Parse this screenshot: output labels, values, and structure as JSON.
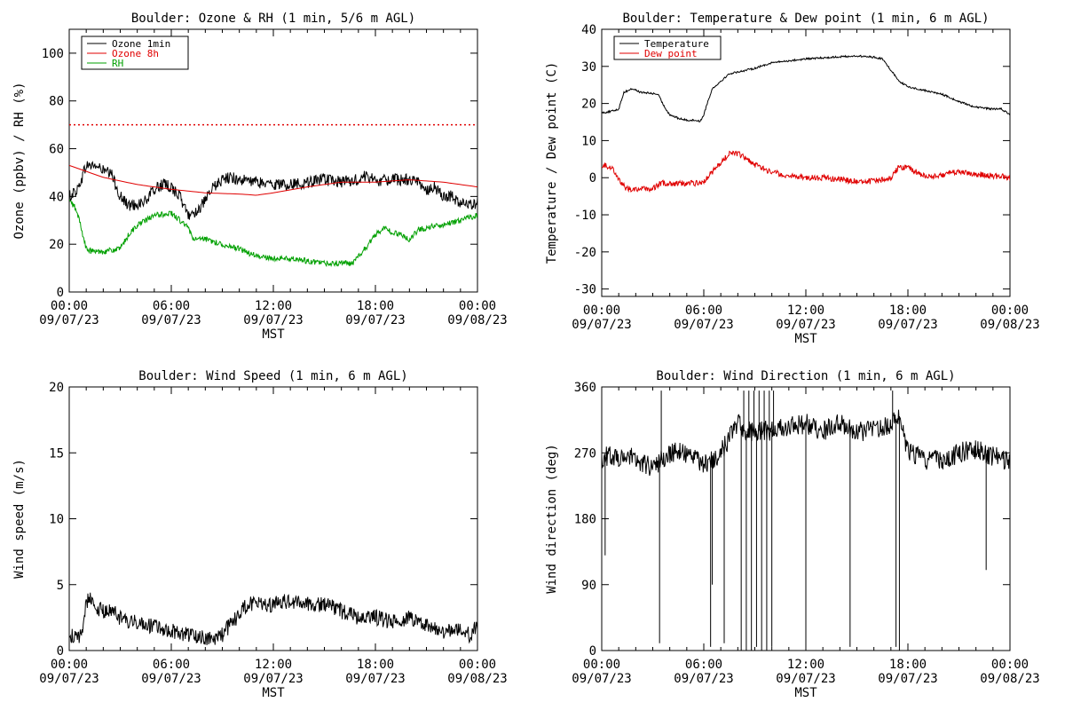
{
  "chart_data": [
    {
      "type": "line",
      "title": "Boulder: Ozone & RH (1 min, 5/6 m AGL)",
      "xlabel": "MST",
      "ylabel": "Ozone (ppbv) / RH (%)",
      "ylim": [
        0,
        110
      ],
      "yticks": [
        0,
        20,
        40,
        60,
        80,
        100
      ],
      "xticks": [
        0,
        6,
        12,
        18,
        24
      ],
      "xtick_labels": [
        [
          "00:00",
          "09/07/23"
        ],
        [
          "06:00",
          "09/07/23"
        ],
        [
          "12:00",
          "09/07/23"
        ],
        [
          "18:00",
          "09/07/23"
        ],
        [
          "00:00",
          "09/08/23"
        ]
      ],
      "legend_position": "top-left",
      "reference_line": {
        "y": 70,
        "color": "#e00000",
        "style": "dotted"
      },
      "series": [
        {
          "name": "Ozone 1min",
          "color": "#000000",
          "noise": 2.5,
          "x": [
            0,
            0.5,
            1,
            1.5,
            2,
            2.5,
            3,
            3.5,
            4,
            4.5,
            5,
            5.5,
            6,
            6.5,
            7,
            7.5,
            8,
            8.5,
            9,
            9.5,
            10,
            11,
            12,
            13,
            14,
            15,
            16,
            17,
            17.5,
            18,
            18.5,
            19,
            20,
            20.5,
            21,
            21.5,
            22,
            22.5,
            23,
            24
          ],
          "y": [
            40,
            43,
            53,
            53,
            51,
            49,
            40,
            36,
            37,
            38,
            43,
            45,
            44,
            40,
            32,
            34,
            38,
            44,
            47,
            48,
            47,
            46,
            45,
            45,
            46,
            47,
            46,
            47,
            49,
            46,
            47,
            47,
            47,
            46,
            43,
            44,
            40,
            40,
            37,
            37
          ]
        },
        {
          "name": "Ozone 8h",
          "color": "#e00000",
          "noise": 0,
          "x": [
            0,
            2,
            4,
            6,
            8,
            10,
            11,
            12,
            14,
            16,
            18,
            20,
            22,
            24
          ],
          "y": [
            53,
            48,
            45,
            43,
            41.5,
            41,
            40.5,
            41.5,
            44,
            46,
            46,
            47,
            46,
            44
          ]
        },
        {
          "name": "RH",
          "color": "#00a000",
          "noise": 1.2,
          "x": [
            0,
            0.3,
            0.6,
            1,
            1.3,
            2,
            3,
            3.5,
            4,
            5,
            6,
            6.5,
            7,
            7.2,
            7.5,
            8,
            9,
            10,
            11,
            12,
            13,
            14,
            15,
            16,
            16.7,
            17,
            17.5,
            18,
            18.5,
            19,
            19.5,
            20,
            20.5,
            21,
            22,
            23,
            24
          ],
          "y": [
            38,
            36,
            30,
            18,
            17,
            17,
            18,
            24,
            28,
            32,
            33,
            30,
            27,
            23,
            22,
            22,
            20,
            18,
            15,
            14,
            14,
            13,
            12,
            12,
            12,
            15,
            19,
            24,
            27,
            25,
            24,
            22,
            26,
            27,
            28,
            30,
            32
          ]
        }
      ]
    },
    {
      "type": "line",
      "title": "Boulder: Temperature & Dew point (1 min, 6 m AGL)",
      "xlabel": "MST",
      "ylabel": "Temperature / Dew point (C)",
      "ylim": [
        -32,
        40
      ],
      "yticks": [
        -30,
        -20,
        -10,
        0,
        10,
        20,
        30,
        40
      ],
      "xticks": [
        0,
        6,
        12,
        18,
        24
      ],
      "xtick_labels": [
        [
          "00:00",
          "09/07/23"
        ],
        [
          "06:00",
          "09/07/23"
        ],
        [
          "12:00",
          "09/07/23"
        ],
        [
          "18:00",
          "09/07/23"
        ],
        [
          "00:00",
          "09/08/23"
        ]
      ],
      "legend_position": "top-left",
      "series": [
        {
          "name": "Temperature",
          "color": "#000000",
          "noise": 0.25,
          "x": [
            0,
            0.5,
            1,
            1.3,
            1.8,
            2.3,
            2.8,
            3.3,
            3.7,
            4,
            4.5,
            5,
            5.5,
            5.8,
            6,
            6.2,
            6.5,
            7,
            7.5,
            8,
            9,
            10,
            11,
            12,
            13,
            14,
            15,
            16,
            16.5,
            17,
            17.5,
            18,
            19,
            20,
            21,
            22,
            23,
            23.5,
            24
          ],
          "y": [
            17.5,
            17.8,
            18.5,
            23,
            24,
            23,
            22.8,
            22.5,
            19,
            17,
            16,
            15.5,
            15.5,
            15.2,
            17,
            20,
            24,
            26,
            28,
            28.5,
            29.5,
            31,
            31.5,
            32,
            32.3,
            32.6,
            32.8,
            32.5,
            32,
            29,
            26,
            24.5,
            23.5,
            22.5,
            20.5,
            19,
            18.5,
            18.5,
            17
          ]
        },
        {
          "name": "Dew point",
          "color": "#e00000",
          "noise": 0.8,
          "x": [
            0,
            0.5,
            0.8,
            1.2,
            1.5,
            2,
            3,
            3.3,
            3.5,
            4,
            5,
            5.5,
            6,
            6.5,
            7,
            7.5,
            8,
            8.5,
            9,
            10,
            11,
            12,
            13,
            14,
            15,
            16,
            17,
            17.5,
            18,
            19,
            20,
            20.5,
            21,
            22,
            23,
            24
          ],
          "y": [
            3.5,
            3,
            1.5,
            -2,
            -3,
            -3,
            -3,
            -2,
            -1.5,
            -1.5,
            -1.5,
            -1.5,
            -1,
            1.5,
            4,
            6.5,
            6.5,
            5,
            3.5,
            1.5,
            0.5,
            0,
            0,
            -0.5,
            -1,
            -1,
            0,
            3,
            2.5,
            0.5,
            0.5,
            1.5,
            1.5,
            1,
            0.5,
            0
          ]
        }
      ]
    },
    {
      "type": "line",
      "title": "Boulder: Wind Speed (1 min, 6 m AGL)",
      "xlabel": "MST",
      "ylabel": "Wind speed (m/s)",
      "ylim": [
        0,
        20
      ],
      "yticks": [
        0,
        5,
        10,
        15,
        20
      ],
      "xticks": [
        0,
        6,
        12,
        18,
        24
      ],
      "xtick_labels": [
        [
          "00:00",
          "09/07/23"
        ],
        [
          "06:00",
          "09/07/23"
        ],
        [
          "12:00",
          "09/07/23"
        ],
        [
          "18:00",
          "09/07/23"
        ],
        [
          "00:00",
          "09/08/23"
        ]
      ],
      "series": [
        {
          "name": "",
          "color": "#000000",
          "noise": 0.6,
          "x": [
            0,
            0.5,
            0.8,
            1,
            1.2,
            1.5,
            2,
            2.5,
            3,
            3.5,
            4,
            4.5,
            5,
            6,
            7,
            8,
            8.5,
            9,
            9.5,
            10,
            10.5,
            11,
            11.5,
            12,
            13,
            14,
            15,
            16,
            17,
            18,
            19,
            20,
            21,
            22,
            23,
            23.5,
            24
          ],
          "y": [
            1.2,
            0.8,
            1.8,
            3.5,
            4.2,
            3.2,
            3,
            3,
            2.5,
            2,
            2.2,
            2,
            1.8,
            1.5,
            1.2,
            1,
            0.9,
            1.2,
            2,
            2.8,
            3.5,
            3.5,
            3.5,
            3.5,
            3.8,
            3.5,
            3.5,
            3,
            2.5,
            2.5,
            2.2,
            2.5,
            2,
            1.5,
            1.5,
            1.2,
            1.8
          ]
        }
      ]
    },
    {
      "type": "line",
      "title": "Boulder: Wind Direction (1 min, 6 m AGL)",
      "xlabel": "MST",
      "ylabel": "Wind direction (deg)",
      "ylim": [
        0,
        360
      ],
      "yticks": [
        0,
        90,
        180,
        270,
        360
      ],
      "xticks": [
        0,
        6,
        12,
        18,
        24
      ],
      "xtick_labels": [
        [
          "00:00",
          "09/07/23"
        ],
        [
          "06:00",
          "09/07/23"
        ],
        [
          "12:00",
          "09/07/23"
        ],
        [
          "18:00",
          "09/07/23"
        ],
        [
          "00:00",
          "09/08/23"
        ]
      ],
      "series": [
        {
          "name": "",
          "color": "#000000",
          "noise": 14,
          "x": [
            0,
            0.5,
            1,
            1.5,
            2,
            3,
            3.5,
            4,
            5,
            6,
            6.5,
            7,
            7.5,
            8,
            8.5,
            9,
            10,
            11,
            12,
            13,
            14,
            15,
            16,
            17,
            17.5,
            18,
            19,
            20,
            21,
            22,
            23,
            24
          ],
          "y": [
            260,
            270,
            260,
            270,
            260,
            250,
            260,
            270,
            270,
            255,
            260,
            270,
            290,
            310,
            300,
            300,
            300,
            305,
            310,
            300,
            310,
            300,
            300,
            310,
            320,
            270,
            260,
            260,
            270,
            275,
            265,
            260
          ],
          "spikes": [
            {
              "x": 0.2,
              "y": 130
            },
            {
              "x": 3.4,
              "y": 10
            },
            {
              "x": 3.5,
              "y": 355
            },
            {
              "x": 6.4,
              "y": 5
            },
            {
              "x": 6.5,
              "y": 90
            },
            {
              "x": 7.2,
              "y": 10
            },
            {
              "x": 8.2,
              "y": 0
            },
            {
              "x": 8.35,
              "y": 355
            },
            {
              "x": 8.5,
              "y": 0
            },
            {
              "x": 8.65,
              "y": 355
            },
            {
              "x": 8.8,
              "y": 0
            },
            {
              "x": 8.95,
              "y": 355
            },
            {
              "x": 9.1,
              "y": 5
            },
            {
              "x": 9.25,
              "y": 355
            },
            {
              "x": 9.4,
              "y": 0
            },
            {
              "x": 9.55,
              "y": 355
            },
            {
              "x": 9.7,
              "y": 0
            },
            {
              "x": 9.85,
              "y": 355
            },
            {
              "x": 10,
              "y": 5
            },
            {
              "x": 10.1,
              "y": 355
            },
            {
              "x": 12,
              "y": 5
            },
            {
              "x": 14.6,
              "y": 5
            },
            {
              "x": 17.1,
              "y": 355
            },
            {
              "x": 17.3,
              "y": 5
            },
            {
              "x": 17.5,
              "y": 0
            },
            {
              "x": 22.6,
              "y": 110
            }
          ]
        }
      ]
    }
  ]
}
